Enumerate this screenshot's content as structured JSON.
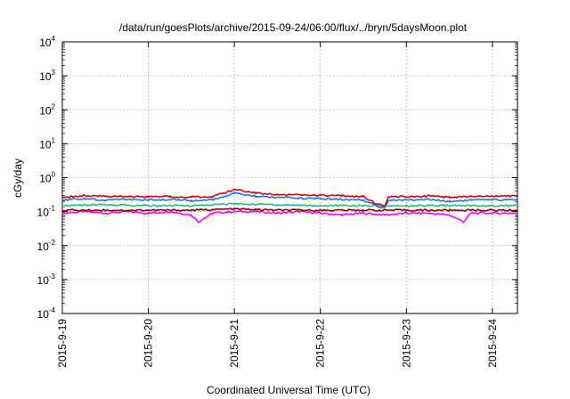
{
  "chart_data": {
    "type": "line",
    "title": "/data/run/goesPlots/archive/2015-09-24/06:00/flux/../bryn/5daysMoon.plot",
    "xlabel": "Coordinated Universal Time (UTC)",
    "ylabel": "cGy/day",
    "x_scale": "time",
    "y_scale": "log",
    "xlim": [
      "2015-09-19T00:00",
      "2015-09-24T07:00"
    ],
    "ylim": [
      0.0001,
      10000
    ],
    "x_ticks": [
      "2015-9-19",
      "2015-9-20",
      "2015-9-21",
      "2015-9-22",
      "2015-9-23",
      "2015-9-24"
    ],
    "y_ticks": [
      {
        "base": "10",
        "exp": "4",
        "value": 10000
      },
      {
        "base": "10",
        "exp": "3",
        "value": 1000
      },
      {
        "base": "10",
        "exp": "2",
        "value": 100
      },
      {
        "base": "10",
        "exp": "1",
        "value": 10
      },
      {
        "base": "10",
        "exp": "0",
        "value": 1
      },
      {
        "base": "10",
        "exp": "-1",
        "value": 0.1
      },
      {
        "base": "10",
        "exp": "-2",
        "value": 0.01
      },
      {
        "base": "10",
        "exp": "-3",
        "value": 0.001
      },
      {
        "base": "10",
        "exp": "-4",
        "value": 0.0001
      }
    ],
    "grid": true,
    "legend": "none",
    "series": [
      {
        "color": "#ff00ff",
        "baseline": 0.09,
        "points": [
          [
            "2015-09-19T00:00",
            0.09
          ],
          [
            "2015-09-19T06:00",
            0.1
          ],
          [
            "2015-09-19T12:00",
            0.09
          ],
          [
            "2015-09-19T18:00",
            0.1
          ],
          [
            "2015-09-20T00:00",
            0.09
          ],
          [
            "2015-09-20T06:00",
            0.1
          ],
          [
            "2015-09-20T12:00",
            0.08
          ],
          [
            "2015-09-20T14:00",
            0.05
          ],
          [
            "2015-09-20T18:00",
            0.09
          ],
          [
            "2015-09-21T00:00",
            0.1
          ],
          [
            "2015-09-21T06:00",
            0.1
          ],
          [
            "2015-09-21T12:00",
            0.09
          ],
          [
            "2015-09-21T18:00",
            0.1
          ],
          [
            "2015-09-22T00:00",
            0.09
          ],
          [
            "2015-09-22T06:00",
            0.08
          ],
          [
            "2015-09-22T12:00",
            0.09
          ],
          [
            "2015-09-22T18:00",
            0.08
          ],
          [
            "2015-09-23T00:00",
            0.09
          ],
          [
            "2015-09-23T06:00",
            0.09
          ],
          [
            "2015-09-23T12:00",
            0.08
          ],
          [
            "2015-09-23T16:00",
            0.05
          ],
          [
            "2015-09-23T18:00",
            0.09
          ],
          [
            "2015-09-24T00:00",
            0.09
          ],
          [
            "2015-09-24T07:00",
            0.09
          ]
        ]
      },
      {
        "color": "#8b0000",
        "baseline": 0.11,
        "points": [
          [
            "2015-09-19T00:00",
            0.11
          ],
          [
            "2015-09-19T12:00",
            0.11
          ],
          [
            "2015-09-20T00:00",
            0.11
          ],
          [
            "2015-09-20T12:00",
            0.11
          ],
          [
            "2015-09-21T00:00",
            0.12
          ],
          [
            "2015-09-21T12:00",
            0.11
          ],
          [
            "2015-09-22T00:00",
            0.11
          ],
          [
            "2015-09-22T12:00",
            0.11
          ],
          [
            "2015-09-23T00:00",
            0.11
          ],
          [
            "2015-09-23T12:00",
            0.11
          ],
          [
            "2015-09-24T00:00",
            0.11
          ],
          [
            "2015-09-24T07:00",
            0.11
          ]
        ]
      },
      {
        "color": "#20c080",
        "baseline": 0.15,
        "points": [
          [
            "2015-09-19T00:00",
            0.15
          ],
          [
            "2015-09-19T12:00",
            0.16
          ],
          [
            "2015-09-20T00:00",
            0.15
          ],
          [
            "2015-09-20T12:00",
            0.15
          ],
          [
            "2015-09-21T00:00",
            0.17
          ],
          [
            "2015-09-21T12:00",
            0.16
          ],
          [
            "2015-09-22T00:00",
            0.15
          ],
          [
            "2015-09-22T12:00",
            0.15
          ],
          [
            "2015-09-23T00:00",
            0.15
          ],
          [
            "2015-09-23T12:00",
            0.15
          ],
          [
            "2015-09-24T00:00",
            0.15
          ],
          [
            "2015-09-24T07:00",
            0.15
          ]
        ]
      },
      {
        "color": "#1e6fff",
        "baseline": 0.22,
        "points": [
          [
            "2015-09-19T00:00",
            0.22
          ],
          [
            "2015-09-19T06:00",
            0.24
          ],
          [
            "2015-09-19T12:00",
            0.22
          ],
          [
            "2015-09-19T18:00",
            0.23
          ],
          [
            "2015-09-20T00:00",
            0.22
          ],
          [
            "2015-09-20T06:00",
            0.23
          ],
          [
            "2015-09-20T12:00",
            0.21
          ],
          [
            "2015-09-20T18:00",
            0.22
          ],
          [
            "2015-09-20T21:00",
            0.28
          ],
          [
            "2015-09-21T00:00",
            0.35
          ],
          [
            "2015-09-21T06:00",
            0.28
          ],
          [
            "2015-09-21T12:00",
            0.26
          ],
          [
            "2015-09-21T18:00",
            0.25
          ],
          [
            "2015-09-22T00:00",
            0.24
          ],
          [
            "2015-09-22T06:00",
            0.23
          ],
          [
            "2015-09-22T12:00",
            0.22
          ],
          [
            "2015-09-22T16:00",
            0.14
          ],
          [
            "2015-09-22T18:00",
            0.13
          ],
          [
            "2015-09-22T19:00",
            0.22
          ],
          [
            "2015-09-23T00:00",
            0.22
          ],
          [
            "2015-09-23T06:00",
            0.23
          ],
          [
            "2015-09-23T12:00",
            0.2
          ],
          [
            "2015-09-23T18:00",
            0.22
          ],
          [
            "2015-09-24T00:00",
            0.22
          ],
          [
            "2015-09-24T07:00",
            0.23
          ]
        ]
      },
      {
        "color": "#e00000",
        "baseline": 0.28,
        "points": [
          [
            "2015-09-19T00:00",
            0.27
          ],
          [
            "2015-09-19T06:00",
            0.3
          ],
          [
            "2015-09-19T12:00",
            0.28
          ],
          [
            "2015-09-19T18:00",
            0.29
          ],
          [
            "2015-09-20T00:00",
            0.27
          ],
          [
            "2015-09-20T06:00",
            0.28
          ],
          [
            "2015-09-20T12:00",
            0.27
          ],
          [
            "2015-09-20T18:00",
            0.28
          ],
          [
            "2015-09-20T21:00",
            0.35
          ],
          [
            "2015-09-21T00:00",
            0.45
          ],
          [
            "2015-09-21T06:00",
            0.36
          ],
          [
            "2015-09-21T12:00",
            0.32
          ],
          [
            "2015-09-21T18:00",
            0.31
          ],
          [
            "2015-09-22T00:00",
            0.3
          ],
          [
            "2015-09-22T06:00",
            0.29
          ],
          [
            "2015-09-22T12:00",
            0.28
          ],
          [
            "2015-09-22T16:00",
            0.16
          ],
          [
            "2015-09-22T18:00",
            0.15
          ],
          [
            "2015-09-22T19:00",
            0.28
          ],
          [
            "2015-09-23T00:00",
            0.28
          ],
          [
            "2015-09-23T06:00",
            0.29
          ],
          [
            "2015-09-23T12:00",
            0.26
          ],
          [
            "2015-09-23T18:00",
            0.28
          ],
          [
            "2015-09-24T00:00",
            0.28
          ],
          [
            "2015-09-24T07:00",
            0.29
          ]
        ]
      }
    ]
  }
}
